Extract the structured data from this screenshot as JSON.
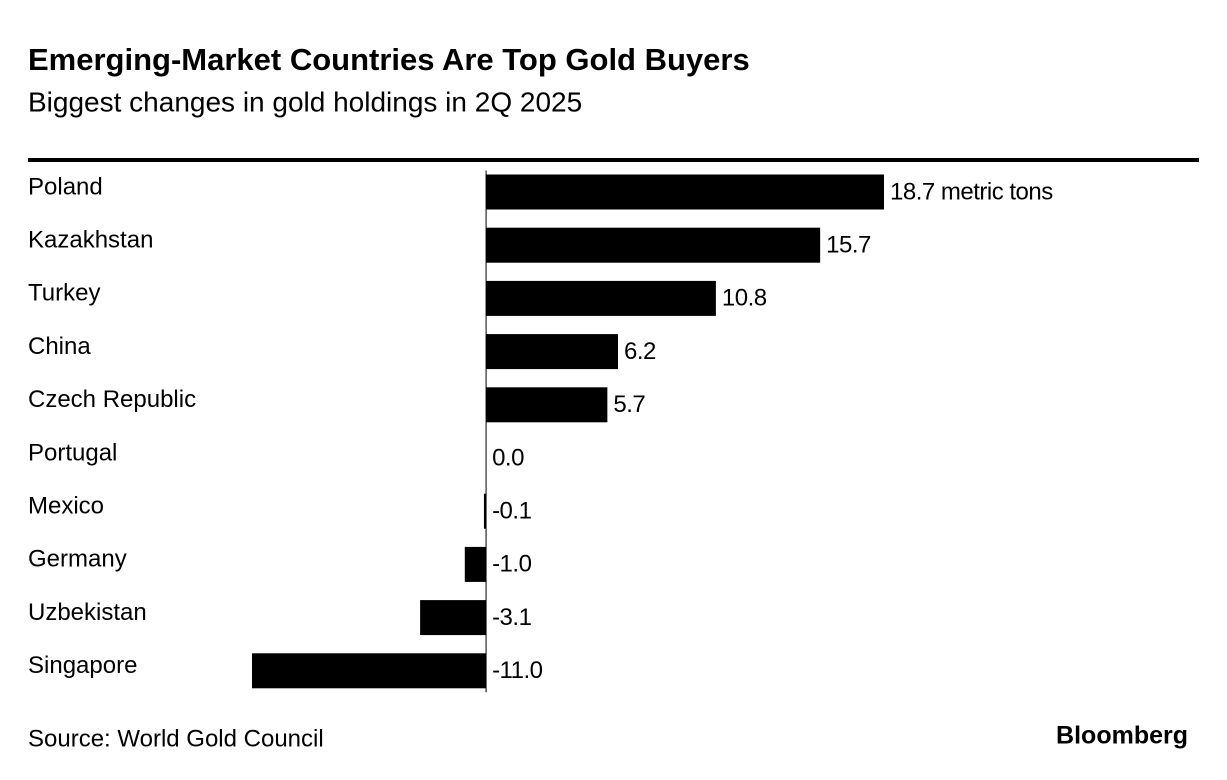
{
  "chart_data": {
    "type": "hbar",
    "title": "Emerging-Market Countries Are Top Gold Buyers",
    "subtitle": "Biggest changes in gold holdings in 2Q 2025",
    "categories": [
      "Poland",
      "Kazakhstan",
      "Turkey",
      "China",
      "Czech Republic",
      "Portugal",
      "Mexico",
      "Germany",
      "Uzbekistan",
      "Singapore"
    ],
    "values": [
      18.7,
      15.7,
      10.8,
      6.2,
      5.7,
      0.0,
      -0.1,
      -1.0,
      -3.1,
      -11.0
    ],
    "value_labels": [
      "18.7 metric tons",
      "15.7",
      "10.8",
      "6.2",
      "5.7",
      "0.0",
      "-0.1",
      "-1.0",
      "-3.1",
      "-11.0"
    ],
    "color": "#000000",
    "source": "Source: World Gold Council",
    "logo": "Bloomberg"
  }
}
